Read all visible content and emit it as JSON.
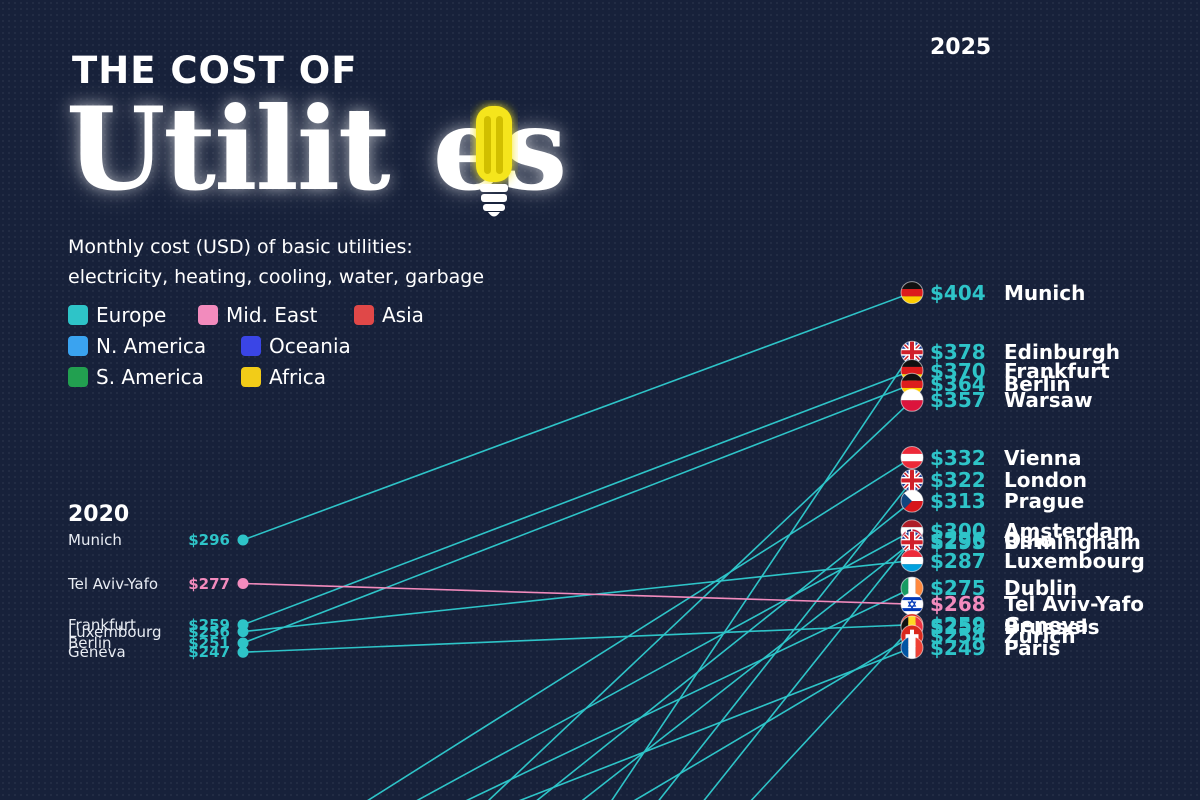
{
  "title": {
    "line1": "THE COST OF",
    "line2_part1": "Utilit",
    "line2_part2": "es"
  },
  "subtitle": {
    "line1": "Monthly cost (USD) of basic utilities:",
    "line2": "electricity, heating, cooling, water, garbage"
  },
  "legend": [
    {
      "label": "Europe",
      "color": "#2ec4c8"
    },
    {
      "label": "Mid. East",
      "color": "#f28bbd"
    },
    {
      "label": "Asia",
      "color": "#e04848"
    },
    {
      "label": "N. America",
      "color": "#3aa3f0"
    },
    {
      "label": "Oceania",
      "color": "#3a45e6"
    },
    {
      "label": "S. America",
      "color": "#22a050"
    },
    {
      "label": "Africa",
      "color": "#f2cc18"
    }
  ],
  "colors": {
    "Europe": "#2ec4c8",
    "Mid. East": "#f28bbd",
    "background": "#17213a"
  },
  "chart_data": {
    "type": "slope",
    "x": [
      "2020",
      "2025"
    ],
    "start_labels": [
      {
        "city": "Munich",
        "value_label": "$296"
      },
      {
        "city": "Tel Aviv-Yafo",
        "value_label": "$277"
      },
      {
        "city": "Frankfurt",
        "value_label": "$259"
      },
      {
        "city": "Luxembourg",
        "value_label": "$256"
      },
      {
        "city": "Berlin",
        "value_label": "$251"
      },
      {
        "city": "Geneva",
        "value_label": "$247"
      }
    ],
    "end_labels": [
      {
        "city": "Munich",
        "value_label": "$404",
        "flag": "germany-flag-icon"
      },
      {
        "city": "Edinburgh",
        "value_label": "$378",
        "flag": "uk-flag-icon"
      },
      {
        "city": "Frankfurt",
        "value_label": "$370",
        "flag": "germany-flag-icon"
      },
      {
        "city": "Berlin",
        "value_label": "$364",
        "flag": "germany-flag-icon"
      },
      {
        "city": "Warsaw",
        "value_label": "$357",
        "flag": "poland-flag-icon"
      },
      {
        "city": "Vienna",
        "value_label": "$332",
        "flag": "austria-flag-icon"
      },
      {
        "city": "London",
        "value_label": "$322",
        "flag": "uk-flag-icon"
      },
      {
        "city": "Prague",
        "value_label": "$313",
        "flag": "czech-flag-icon"
      },
      {
        "city": "Amsterdam",
        "value_label": "$300",
        "flag": "netherlands-flag-icon"
      },
      {
        "city": "Oslo",
        "value_label": "$296",
        "flag": "norway-flag-icon"
      },
      {
        "city": "Birmingham",
        "value_label": "$295",
        "flag": "uk-flag-icon"
      },
      {
        "city": "Luxembourg",
        "value_label": "$287",
        "flag": "luxembourg-flag-icon"
      },
      {
        "city": "Dublin",
        "value_label": "$275",
        "flag": "ireland-flag-icon"
      },
      {
        "city": "Tel Aviv-Yafo",
        "value_label": "$268",
        "flag": "israel-flag-icon"
      },
      {
        "city": "Geneva",
        "value_label": "$259",
        "flag": "switzerland-flag-icon"
      },
      {
        "city": "Brussels",
        "value_label": "$258",
        "flag": "belgium-flag-icon"
      },
      {
        "city": "Zurich",
        "value_label": "$254",
        "flag": "switzerland-flag-icon"
      },
      {
        "city": "Paris",
        "value_label": "$249",
        "flag": "france-flag-icon"
      }
    ],
    "series": [
      {
        "name": "Munich",
        "region": "Europe",
        "values": [
          296,
          404
        ]
      },
      {
        "name": "Edinburgh",
        "region": "Europe",
        "values": [
          null,
          378
        ]
      },
      {
        "name": "Frankfurt",
        "region": "Europe",
        "values": [
          259,
          370
        ]
      },
      {
        "name": "Berlin",
        "region": "Europe",
        "values": [
          251,
          364
        ]
      },
      {
        "name": "Warsaw",
        "region": "Europe",
        "values": [
          null,
          357
        ]
      },
      {
        "name": "Vienna",
        "region": "Europe",
        "values": [
          null,
          332
        ]
      },
      {
        "name": "London",
        "region": "Europe",
        "values": [
          null,
          322
        ]
      },
      {
        "name": "Prague",
        "region": "Europe",
        "values": [
          null,
          313
        ]
      },
      {
        "name": "Amsterdam",
        "region": "Europe",
        "values": [
          null,
          300
        ]
      },
      {
        "name": "Oslo",
        "region": "Europe",
        "values": [
          null,
          296
        ]
      },
      {
        "name": "Birmingham",
        "region": "Europe",
        "values": [
          null,
          295
        ]
      },
      {
        "name": "Luxembourg",
        "region": "Europe",
        "values": [
          256,
          287
        ]
      },
      {
        "name": "Dublin",
        "region": "Europe",
        "values": [
          null,
          275
        ]
      },
      {
        "name": "Tel Aviv-Yafo",
        "region": "Mid. East",
        "values": [
          277,
          268
        ]
      },
      {
        "name": "Geneva",
        "region": "Europe",
        "values": [
          247,
          259
        ]
      },
      {
        "name": "Brussels",
        "region": "Europe",
        "values": [
          null,
          258
        ]
      },
      {
        "name": "Zurich",
        "region": "Europe",
        "values": [
          null,
          254
        ]
      },
      {
        "name": "Paris",
        "region": "Europe",
        "values": [
          null,
          249
        ]
      }
    ]
  }
}
